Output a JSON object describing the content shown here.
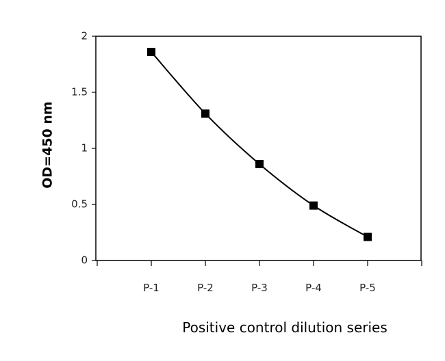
{
  "chart_data": {
    "type": "line",
    "categories": [
      "P-1",
      "P-2",
      "P-3",
      "P-4",
      "P-5"
    ],
    "series": [
      {
        "values": [
          1.86,
          1.31,
          0.86,
          0.49,
          0.21
        ],
        "color": "#000000",
        "marker": "square",
        "smooth": true
      }
    ],
    "title": "",
    "xlabel": "Positive control dilution series",
    "ylabel": "OD=450 nm",
    "ylim": [
      0,
      2
    ],
    "yticks": [
      "0",
      "0.5",
      "1",
      "1.5",
      "2"
    ],
    "grid": false,
    "legend": "none"
  }
}
